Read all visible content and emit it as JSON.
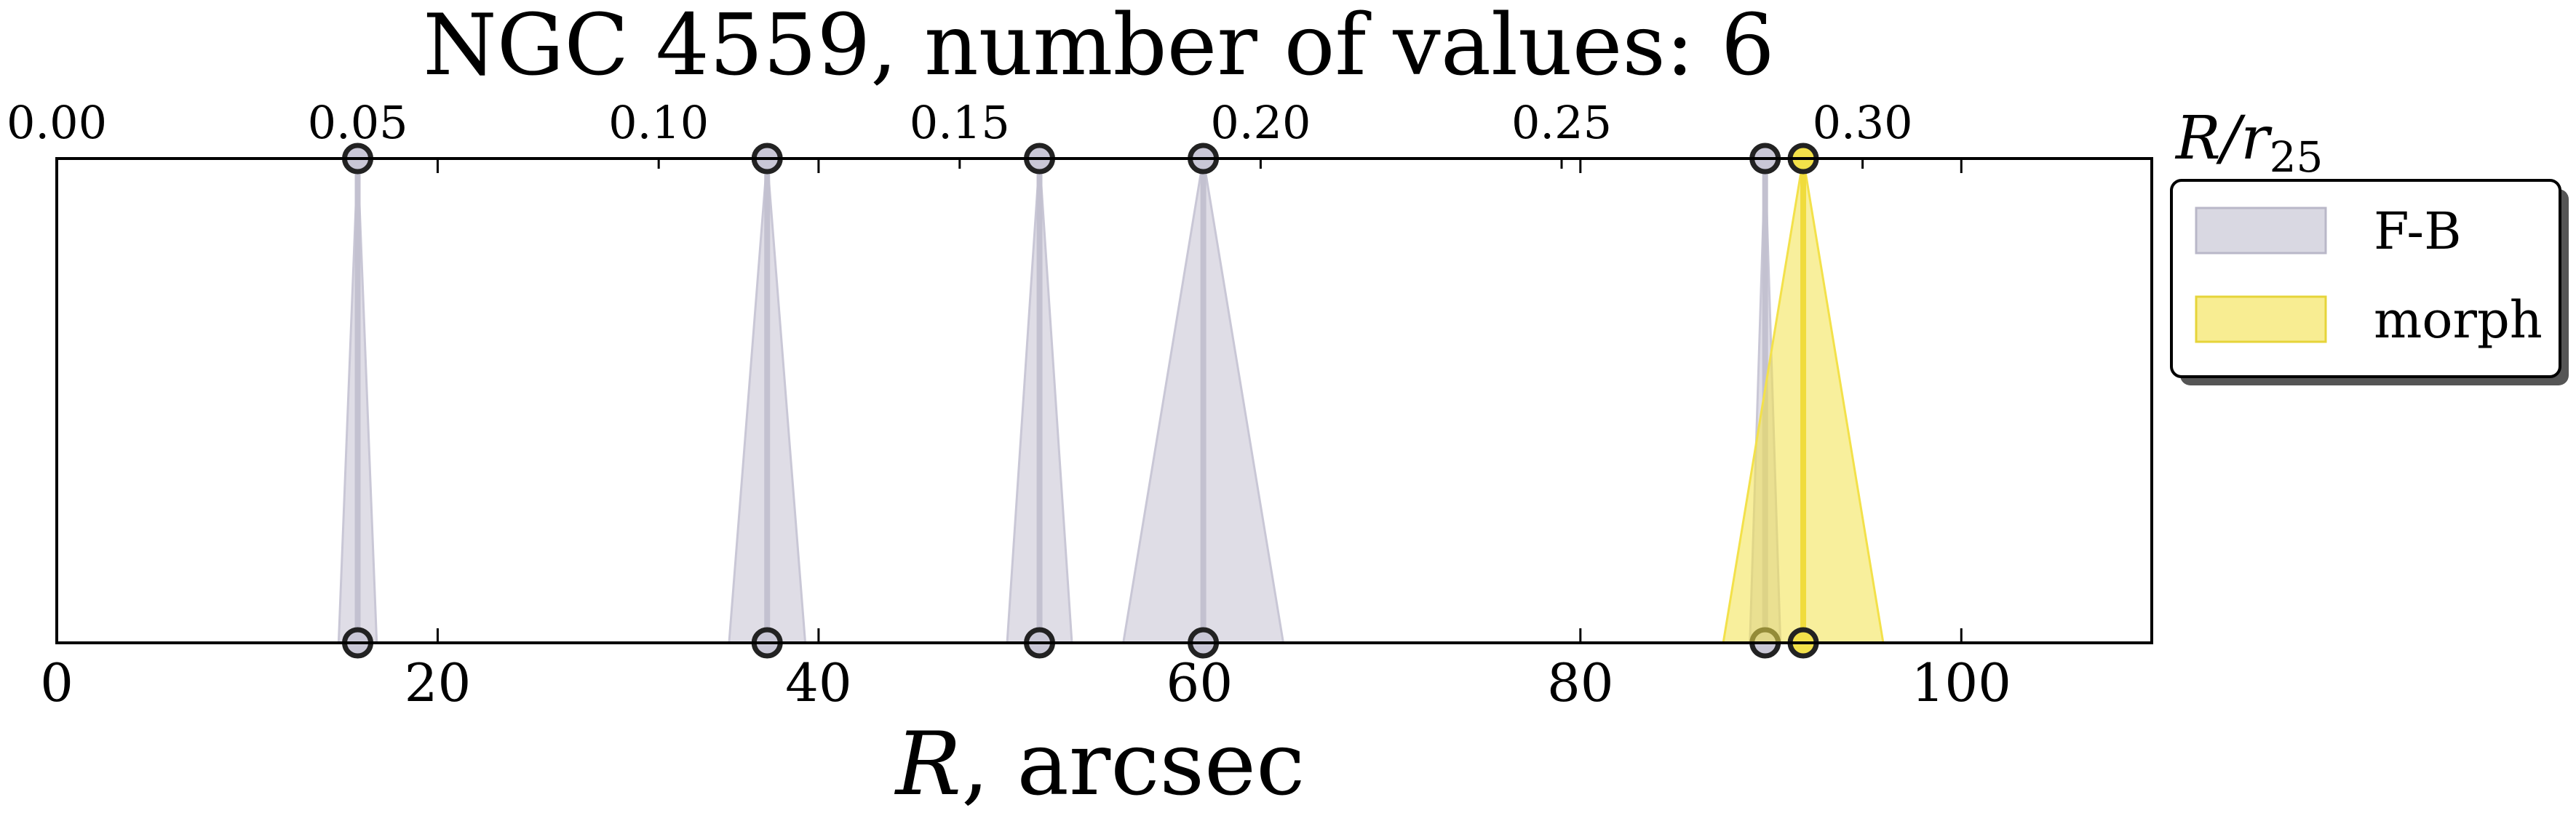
{
  "chart_data": {
    "type": "area",
    "title": "NGC 4559, number of values: 6",
    "xlabel": "R, arcsec",
    "xlabel_italic": "R",
    "xlabel_rest": ", arcsec",
    "xlim": [
      0,
      110
    ],
    "ylim": [
      0,
      1
    ],
    "x_ticks": [
      0,
      20,
      40,
      60,
      80,
      100
    ],
    "x_tick_labels": [
      "0",
      "20",
      "40",
      "60",
      "80",
      "100"
    ],
    "top_axis": {
      "label": "R/r25",
      "label_main": "R/r",
      "label_sub": "25",
      "ticks": [
        0.0,
        0.05,
        0.1,
        0.15,
        0.2,
        0.25,
        0.3
      ],
      "tick_labels": [
        "0.00",
        "0.05",
        "0.10",
        "0.15",
        "0.20",
        "0.25",
        "0.30"
      ],
      "scale_factor": 0.003164
    },
    "grid": false,
    "legend_position": "outside-right",
    "colors": {
      "F-B": "#c9c7d6",
      "morph": "#f3e14a",
      "marker_edge": "#222222"
    },
    "series": [
      {
        "name": "F-B",
        "values": [
          {
            "x": 15.8,
            "err": 1.0
          },
          {
            "x": 37.3,
            "err": 2.0
          },
          {
            "x": 51.6,
            "err": 1.7
          },
          {
            "x": 60.2,
            "err": 4.2
          },
          {
            "x": 89.7,
            "err": 0.8
          }
        ]
      },
      {
        "name": "morph",
        "values": [
          {
            "x": 91.7,
            "err": 4.2
          }
        ]
      }
    ]
  }
}
